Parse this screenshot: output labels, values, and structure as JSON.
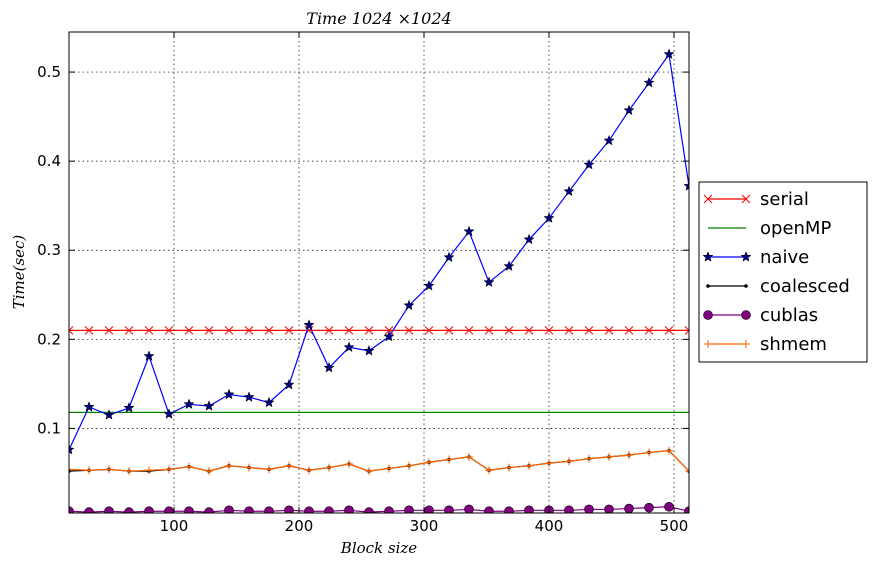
{
  "chart_data": {
    "type": "line",
    "title": "Time 1024 ×1024",
    "xlabel": "Block size",
    "ylabel": "Time(sec)",
    "xlim": [
      16,
      512
    ],
    "ylim": [
      0.005,
      0.545
    ],
    "xticks": [
      100,
      200,
      300,
      400,
      500
    ],
    "yticks": [
      0.1,
      0.2,
      0.3,
      0.4,
      0.5
    ],
    "grid": true,
    "legend_position": "right, outside plot area",
    "x": [
      16,
      32,
      48,
      64,
      80,
      96,
      112,
      128,
      144,
      160,
      176,
      192,
      208,
      224,
      240,
      256,
      272,
      288,
      304,
      320,
      336,
      352,
      368,
      384,
      400,
      416,
      432,
      448,
      464,
      480,
      496,
      512
    ],
    "series": [
      {
        "name": "serial",
        "color": "#ff0000",
        "marker": "x",
        "values": [
          0.21,
          0.21,
          0.21,
          0.21,
          0.21,
          0.21,
          0.21,
          0.21,
          0.21,
          0.21,
          0.21,
          0.21,
          0.21,
          0.21,
          0.21,
          0.21,
          0.21,
          0.21,
          0.21,
          0.21,
          0.21,
          0.21,
          0.21,
          0.21,
          0.21,
          0.21,
          0.21,
          0.21,
          0.21,
          0.21,
          0.21,
          0.21
        ]
      },
      {
        "name": "openMP",
        "color": "#008000",
        "marker": "none",
        "values": [
          0.118,
          0.118,
          0.118,
          0.118,
          0.118,
          0.118,
          0.118,
          0.118,
          0.118,
          0.118,
          0.118,
          0.118,
          0.118,
          0.118,
          0.118,
          0.118,
          0.118,
          0.118,
          0.118,
          0.118,
          0.118,
          0.118,
          0.118,
          0.118,
          0.118,
          0.118,
          0.118,
          0.118,
          0.118,
          0.118,
          0.118,
          0.118
        ]
      },
      {
        "name": "naive",
        "color": "#0000ff",
        "marker": "star",
        "values": [
          0.076,
          0.124,
          0.115,
          0.123,
          0.181,
          0.116,
          0.127,
          0.125,
          0.138,
          0.135,
          0.129,
          0.149,
          0.216,
          0.168,
          0.191,
          0.187,
          0.203,
          0.238,
          0.26,
          0.292,
          0.321,
          0.264,
          0.282,
          0.312,
          0.336,
          0.366,
          0.396,
          0.423,
          0.457,
          0.488,
          0.52,
          0.372
        ]
      },
      {
        "name": "coalesced",
        "color": "#000000",
        "marker": "dot",
        "values": [
          0.052,
          0.053,
          0.054,
          0.052,
          0.052,
          0.054,
          0.057,
          0.052,
          0.058,
          0.056,
          0.054,
          0.058,
          0.053,
          0.056,
          0.06,
          0.052,
          0.055,
          0.058,
          0.062,
          0.065,
          0.068,
          0.053,
          0.056,
          0.058,
          0.061,
          0.063,
          0.066,
          0.068,
          0.07,
          0.073,
          0.075,
          0.052
        ]
      },
      {
        "name": "cublas",
        "color": "#800080",
        "marker": "circle",
        "values": [
          0.007,
          0.006,
          0.007,
          0.006,
          0.007,
          0.007,
          0.007,
          0.006,
          0.008,
          0.007,
          0.007,
          0.008,
          0.007,
          0.007,
          0.008,
          0.006,
          0.007,
          0.008,
          0.008,
          0.008,
          0.009,
          0.007,
          0.007,
          0.008,
          0.008,
          0.008,
          0.009,
          0.009,
          0.01,
          0.011,
          0.012,
          0.007
        ]
      },
      {
        "name": "shmem",
        "color": "#ff6600",
        "marker": "plus",
        "values": [
          0.054,
          0.053,
          0.054,
          0.052,
          0.053,
          0.054,
          0.057,
          0.052,
          0.058,
          0.056,
          0.054,
          0.058,
          0.053,
          0.056,
          0.06,
          0.052,
          0.055,
          0.058,
          0.062,
          0.065,
          0.068,
          0.053,
          0.056,
          0.058,
          0.061,
          0.063,
          0.066,
          0.068,
          0.07,
          0.073,
          0.075,
          0.052
        ]
      }
    ]
  }
}
